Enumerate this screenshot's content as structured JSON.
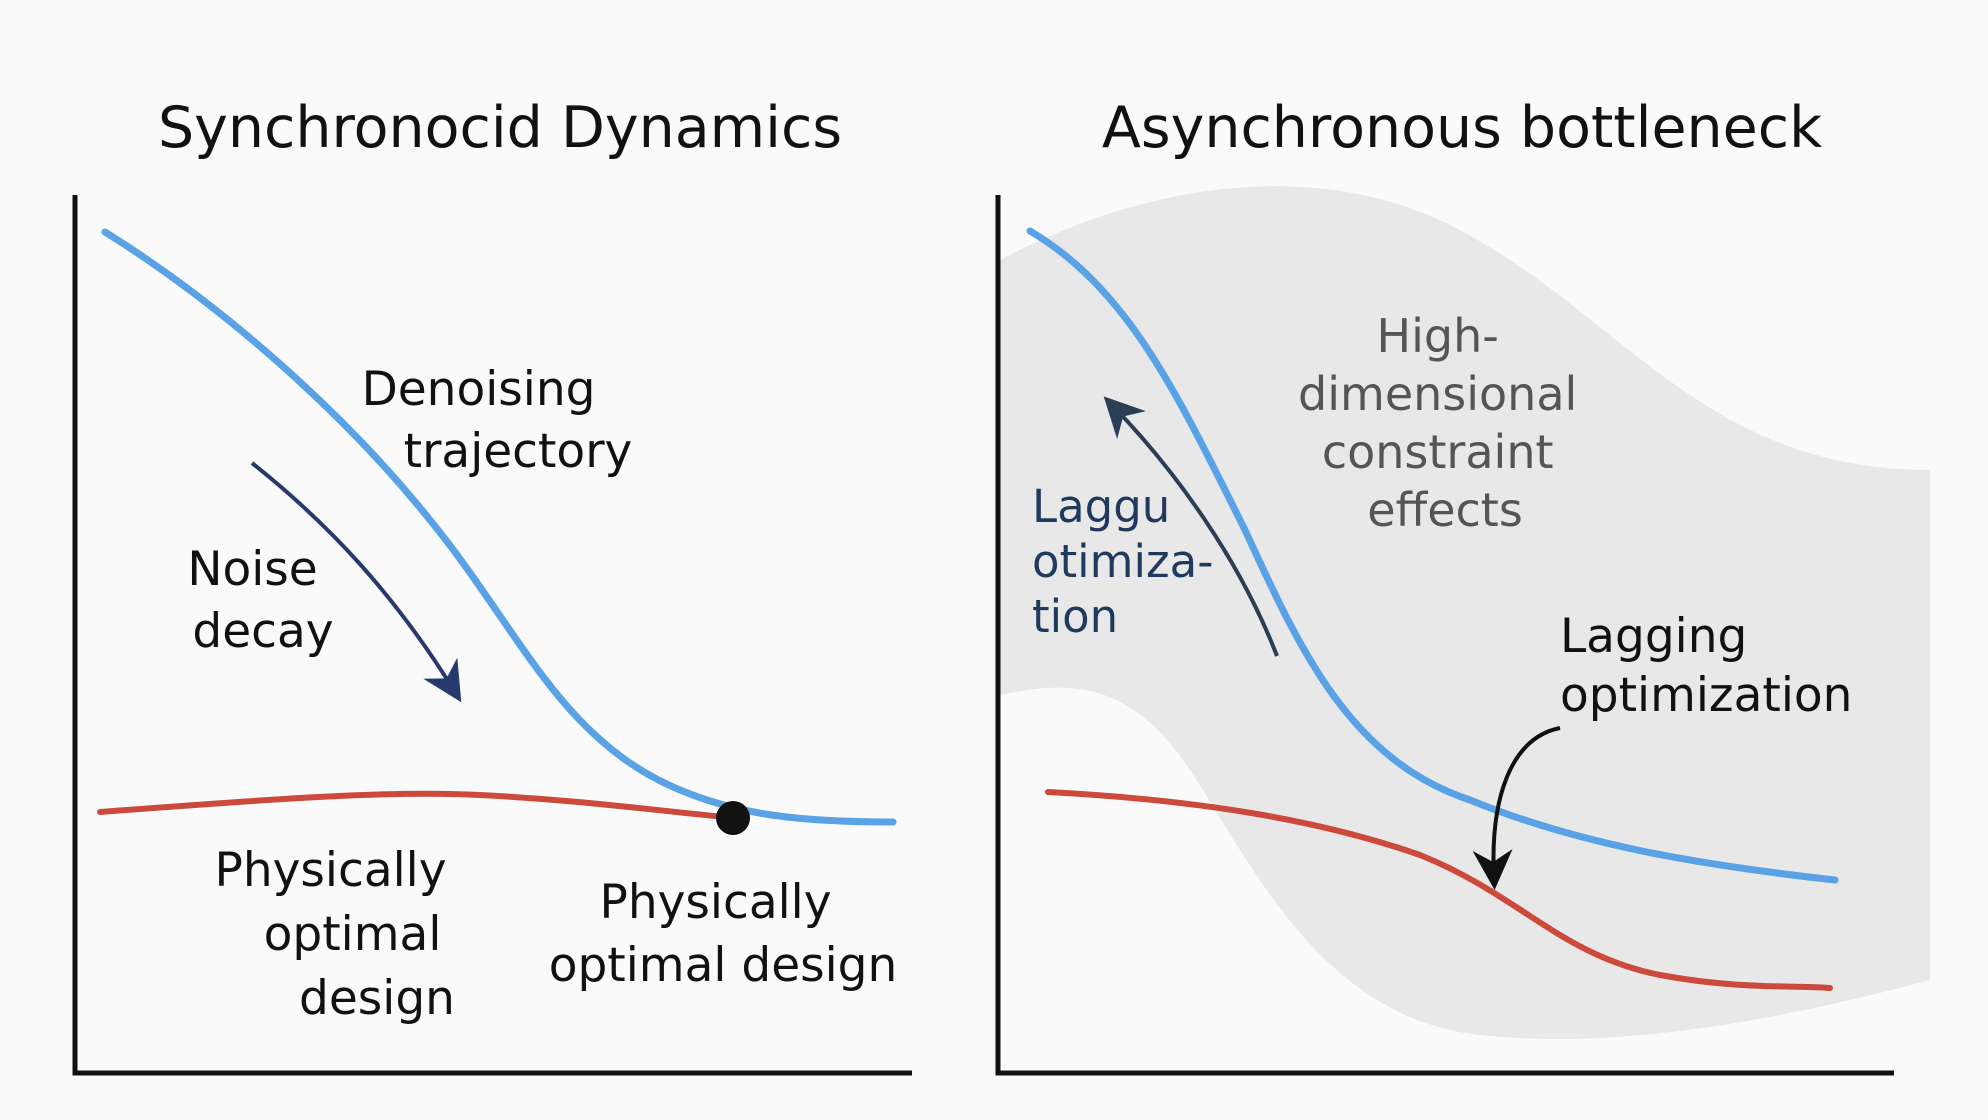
{
  "left_panel": {
    "title": "Synchronocid Dynamics",
    "trajectory_label": [
      "Denoising",
      "trajectory"
    ],
    "noise_label": [
      "Noise",
      "decay"
    ],
    "design_label_a": [
      "Physically",
      "optimal",
      "design"
    ],
    "design_label_b": [
      "Physically",
      "optimal design"
    ]
  },
  "right_panel": {
    "title": "Asynchronous bottleneck",
    "region_label": [
      "High-",
      "dimensional",
      "constraint",
      "effects"
    ],
    "lag_label_short": [
      "Laggu",
      "otimiza-",
      "tion"
    ],
    "lag_label": [
      "Lagging",
      "optimization"
    ]
  },
  "colors": {
    "trajectory": "#5aa2e6",
    "design": "#cc4a3c",
    "region": "#e8e8e8",
    "noise_arrow": "#263a6e",
    "lag_arrow": "#2b3e55",
    "axis": "#111111"
  }
}
